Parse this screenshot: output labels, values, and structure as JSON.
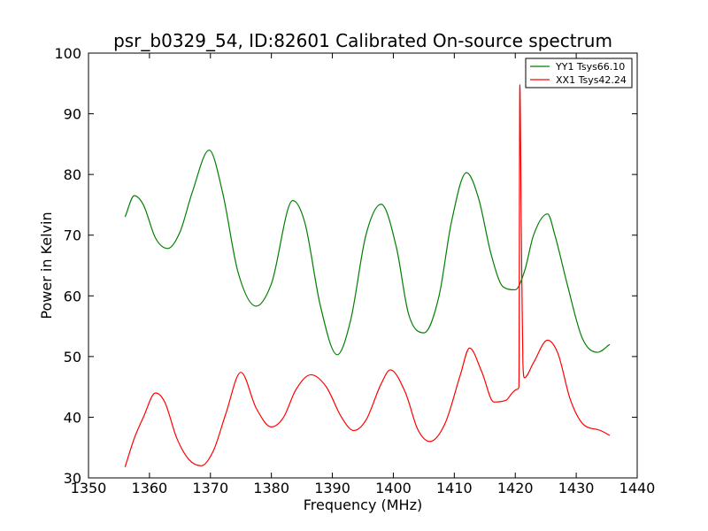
{
  "chart_data": {
    "type": "line",
    "title": "psr_b0329_54, ID:82601 Calibrated On-source spectrum",
    "xlabel": "Frequency (MHz)",
    "ylabel": "Power in Kelvin",
    "xlim": [
      1350,
      1440
    ],
    "ylim": [
      30,
      100
    ],
    "xticks": [
      1350,
      1360,
      1370,
      1380,
      1390,
      1400,
      1410,
      1420,
      1430,
      1440
    ],
    "yticks": [
      30,
      40,
      50,
      60,
      70,
      80,
      90,
      100
    ],
    "grid": false,
    "legend_position": "top-right",
    "series": [
      {
        "name": "YY1 Tsys66.10",
        "color": "#008000",
        "x": [
          1356,
          1357.5,
          1359,
          1361,
          1363,
          1365,
          1367,
          1369.8,
          1372,
          1374.5,
          1377.5,
          1380,
          1383.5,
          1385.5,
          1388,
          1390.8,
          1393,
          1395.5,
          1398,
          1400.5,
          1402.5,
          1405,
          1407.5,
          1409.5,
          1412,
          1414,
          1416,
          1418,
          1420,
          1421.5,
          1423,
          1425.3,
          1426.5,
          1428.5,
          1431,
          1433.5,
          1435.5
        ],
        "y": [
          73,
          76.5,
          75,
          69.5,
          67.8,
          70.5,
          77,
          84,
          77,
          64,
          58.3,
          62,
          75.7,
          72,
          58.5,
          50.3,
          56,
          70,
          75.1,
          68,
          57,
          53.9,
          60,
          72,
          80.3,
          76,
          67,
          61.5,
          61,
          64,
          70,
          73.5,
          70,
          62,
          53,
          50.7,
          52
        ]
      },
      {
        "name": "XX1 Tsys42.24",
        "color": "#ff0000",
        "x": [
          1356,
          1357.5,
          1359,
          1361,
          1362.5,
          1364.5,
          1366.5,
          1368.5,
          1370.5,
          1372.5,
          1375,
          1377.5,
          1380,
          1382,
          1384,
          1386.5,
          1389,
          1391.5,
          1393.5,
          1395.5,
          1398,
          1399.5,
          1402,
          1404,
          1406,
          1408.5,
          1411,
          1412.5,
          1414.5,
          1416.5,
          1418.5,
          1419.5,
          1420.3,
          1420.6,
          1420.75,
          1421.0,
          1421.25,
          1421.5,
          1423,
          1425.3,
          1427,
          1429,
          1431,
          1434,
          1435.5
        ],
        "y": [
          31.8,
          36.5,
          40,
          44,
          42.5,
          36.5,
          33,
          32,
          34.5,
          40.5,
          47.4,
          41.5,
          38.4,
          40,
          44.5,
          47,
          45,
          40,
          37.8,
          39.5,
          45.5,
          47.8,
          44,
          38,
          36,
          39,
          47,
          51.4,
          47.5,
          42.5,
          42.8,
          44,
          44.6,
          45,
          94.8,
          70,
          49,
          46.5,
          49,
          52.7,
          50.5,
          43,
          39,
          37.8,
          37
        ]
      }
    ]
  }
}
